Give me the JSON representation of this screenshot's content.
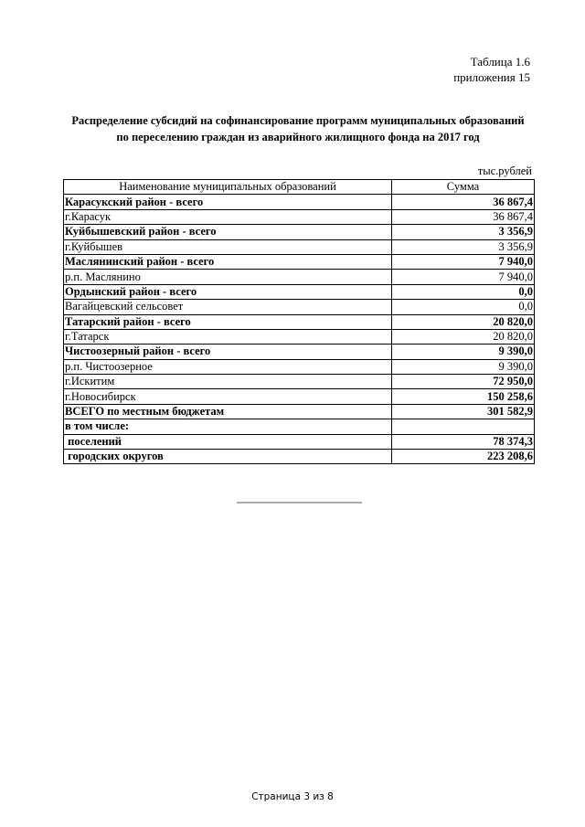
{
  "header": {
    "table_label": "Таблица 1.6",
    "appendix_label": "приложения 15"
  },
  "title": {
    "line1": "Распределение субсидий на софинансирование программ муниципальных образований",
    "line2": "по переселению граждан из аварийного жилищного фонда на 2017 год"
  },
  "unit": "тыс.рублей",
  "table": {
    "columns": [
      "Наименование муниципальных образований",
      "Сумма"
    ],
    "rows": [
      {
        "name": "Карасукский район - всего",
        "sum": "36 867,4",
        "bold": true
      },
      {
        "name": "г.Карасук",
        "sum": "36 867,4",
        "bold": false
      },
      {
        "name": "Куйбышевский район - всего",
        "sum": "3 356,9",
        "bold": true
      },
      {
        "name": "г.Куйбышев",
        "sum": "3 356,9",
        "bold": false
      },
      {
        "name": "Маслянинский район - всего",
        "sum": "7 940,0",
        "bold": true
      },
      {
        "name": "р.п. Маслянино",
        "sum": "7 940,0",
        "bold": false
      },
      {
        "name": "Ордынский район - всего",
        "sum": "0,0",
        "bold": true
      },
      {
        "name": "Вагайцевский сельсовет",
        "sum": "0,0",
        "bold": false
      },
      {
        "name": "Татарский район - всего",
        "sum": "20 820,0",
        "bold": true
      },
      {
        "name": "г.Татарск",
        "sum": "20 820,0",
        "bold": false
      },
      {
        "name": "Чистоозерный район - всего",
        "sum": "9 390,0",
        "bold": true
      },
      {
        "name": "р.п. Чистоозерное",
        "sum": "9 390,0",
        "bold": false
      },
      {
        "name": "г.Искитим",
        "sum": "72 950,0",
        "bold": false,
        "sum_bold": true
      },
      {
        "name": "г.Новосибирск",
        "sum": "150 258,6",
        "bold": false,
        "sum_bold": true
      },
      {
        "name": "ВСЕГО по местным бюджетам",
        "sum": "301 582,9",
        "bold": true
      },
      {
        "name": "в том числе:",
        "sum": "",
        "bold": true
      },
      {
        "name": " поселений",
        "sum": "78 374,3",
        "bold": true
      },
      {
        "name": " городских округов",
        "sum": "223 208,6",
        "bold": true
      }
    ]
  },
  "footer": {
    "page": "Страница  3 из 8"
  }
}
